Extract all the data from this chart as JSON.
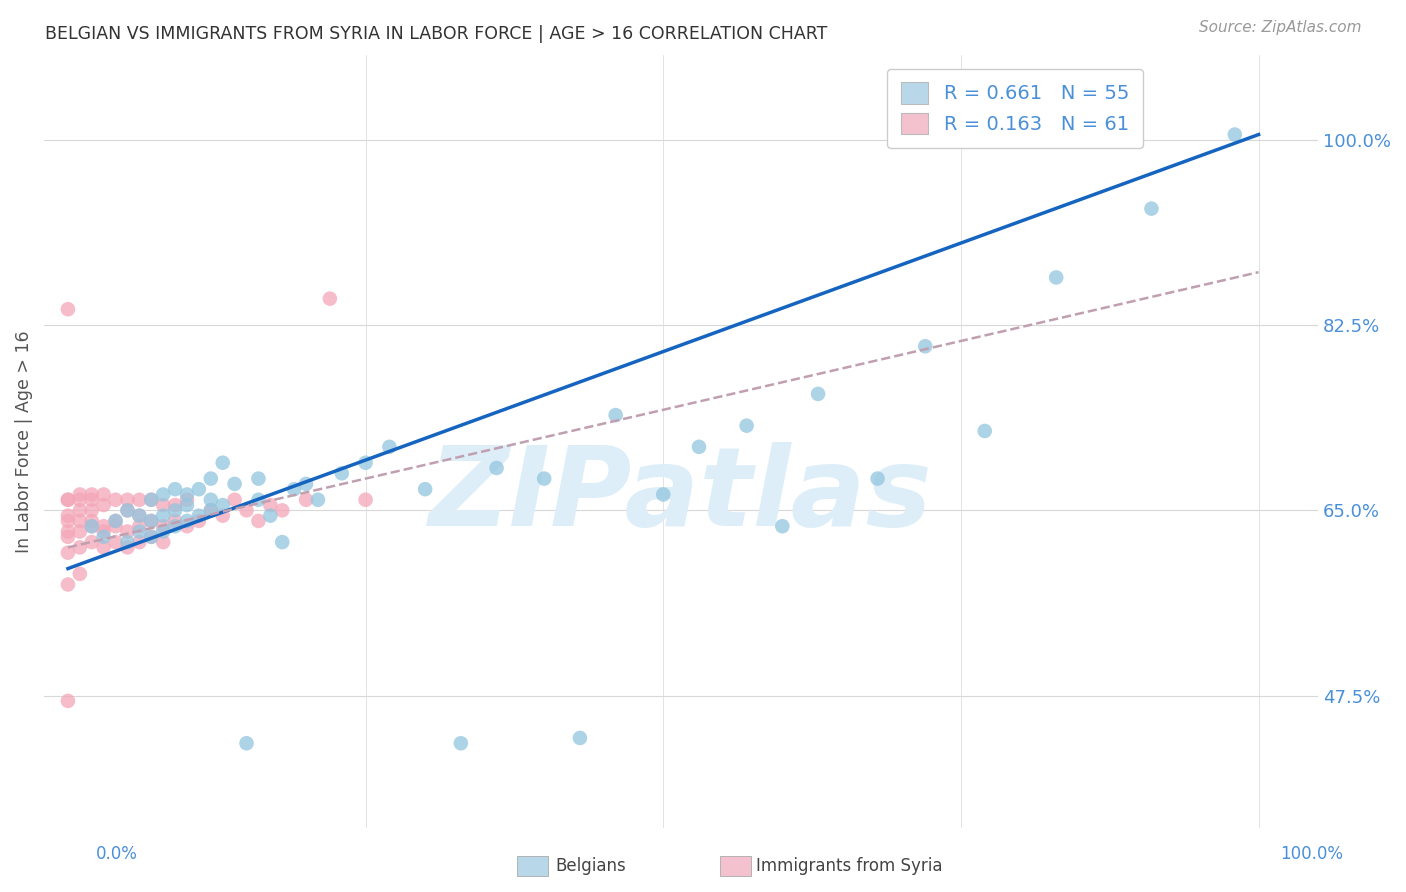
{
  "title": "BELGIAN VS IMMIGRANTS FROM SYRIA IN LABOR FORCE | AGE > 16 CORRELATION CHART",
  "source": "Source: ZipAtlas.com",
  "ylabel": "In Labor Force | Age > 16",
  "ymin": 0.35,
  "ymax": 1.08,
  "xmin": -0.02,
  "xmax": 1.05,
  "belgians_R": 0.661,
  "belgians_N": 55,
  "syria_R": 0.163,
  "syria_N": 61,
  "blue_scatter_color": "#92c5de",
  "pink_scatter_color": "#f4a6b8",
  "blue_line_color": "#1565c0",
  "pink_line_color": "#c0a0b0",
  "legend_blue_fill": "#b8d8ea",
  "legend_pink_fill": "#f4c2ce",
  "watermark_color": "#ddeef8",
  "watermark_text": "ZIPatlas",
  "background_color": "#ffffff",
  "grid_color": "#d8d8d8",
  "title_color": "#333333",
  "axis_label_color": "#4a90d9",
  "right_tick_color": "#4a90d9",
  "ytick_vals": [
    0.475,
    0.65,
    0.825,
    1.0
  ],
  "ytick_labels": [
    "47.5%",
    "65.0%",
    "82.5%",
    "100.0%"
  ],
  "blue_line_x0": 0.0,
  "blue_line_y0": 0.595,
  "blue_line_x1": 1.0,
  "blue_line_y1": 1.005,
  "pink_line_x0": 0.0,
  "pink_line_y0": 0.615,
  "pink_line_x1": 1.0,
  "pink_line_y1": 0.875,
  "belgians_x": [
    0.02,
    0.03,
    0.04,
    0.05,
    0.05,
    0.06,
    0.06,
    0.07,
    0.07,
    0.07,
    0.08,
    0.08,
    0.08,
    0.09,
    0.09,
    0.09,
    0.1,
    0.1,
    0.1,
    0.11,
    0.11,
    0.12,
    0.12,
    0.12,
    0.13,
    0.13,
    0.14,
    0.15,
    0.16,
    0.16,
    0.17,
    0.18,
    0.19,
    0.2,
    0.21,
    0.23,
    0.25,
    0.27,
    0.3,
    0.33,
    0.36,
    0.4,
    0.43,
    0.46,
    0.5,
    0.53,
    0.57,
    0.6,
    0.63,
    0.68,
    0.72,
    0.77,
    0.83,
    0.91,
    0.98
  ],
  "belgians_y": [
    0.635,
    0.625,
    0.64,
    0.62,
    0.65,
    0.63,
    0.645,
    0.625,
    0.64,
    0.66,
    0.63,
    0.645,
    0.665,
    0.635,
    0.65,
    0.67,
    0.64,
    0.655,
    0.665,
    0.645,
    0.67,
    0.65,
    0.66,
    0.68,
    0.655,
    0.695,
    0.675,
    0.43,
    0.66,
    0.68,
    0.645,
    0.62,
    0.67,
    0.675,
    0.66,
    0.685,
    0.695,
    0.71,
    0.67,
    0.43,
    0.69,
    0.68,
    0.435,
    0.74,
    0.665,
    0.71,
    0.73,
    0.635,
    0.76,
    0.68,
    0.805,
    0.725,
    0.87,
    0.935,
    1.005
  ],
  "syria_x": [
    0.0,
    0.0,
    0.0,
    0.0,
    0.0,
    0.0,
    0.0,
    0.0,
    0.0,
    0.01,
    0.01,
    0.01,
    0.01,
    0.01,
    0.01,
    0.01,
    0.02,
    0.02,
    0.02,
    0.02,
    0.02,
    0.02,
    0.03,
    0.03,
    0.03,
    0.03,
    0.03,
    0.04,
    0.04,
    0.04,
    0.04,
    0.05,
    0.05,
    0.05,
    0.05,
    0.06,
    0.06,
    0.06,
    0.06,
    0.07,
    0.07,
    0.07,
    0.08,
    0.08,
    0.08,
    0.09,
    0.09,
    0.1,
    0.1,
    0.11,
    0.12,
    0.13,
    0.14,
    0.15,
    0.16,
    0.17,
    0.18,
    0.2,
    0.22,
    0.25,
    0.0
  ],
  "syria_y": [
    0.84,
    0.625,
    0.645,
    0.66,
    0.63,
    0.61,
    0.66,
    0.64,
    0.58,
    0.65,
    0.63,
    0.66,
    0.615,
    0.64,
    0.59,
    0.665,
    0.64,
    0.62,
    0.66,
    0.635,
    0.65,
    0.665,
    0.635,
    0.615,
    0.655,
    0.63,
    0.665,
    0.64,
    0.62,
    0.66,
    0.635,
    0.65,
    0.63,
    0.66,
    0.615,
    0.645,
    0.62,
    0.66,
    0.635,
    0.64,
    0.625,
    0.66,
    0.635,
    0.655,
    0.62,
    0.64,
    0.655,
    0.635,
    0.66,
    0.64,
    0.65,
    0.645,
    0.66,
    0.65,
    0.64,
    0.655,
    0.65,
    0.66,
    0.85,
    0.66,
    0.47
  ]
}
